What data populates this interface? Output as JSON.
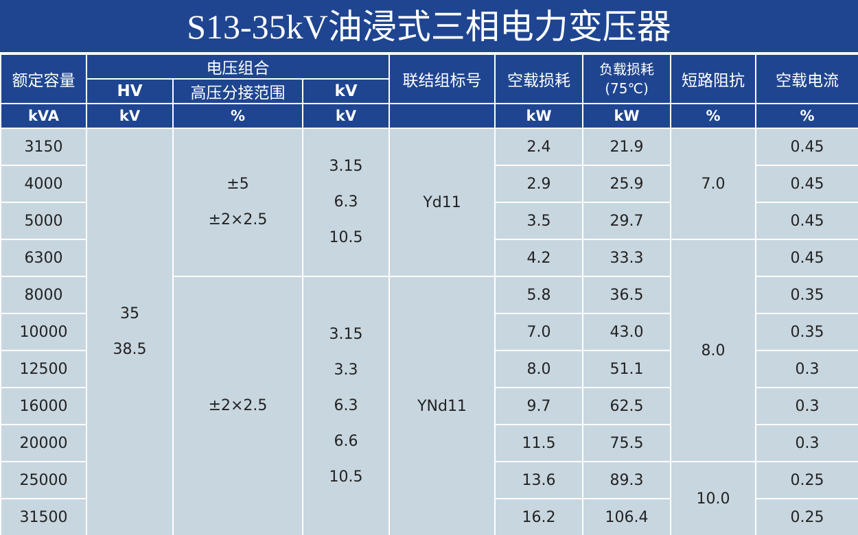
{
  "title": "S13-35kV油浸式三相电力变压器",
  "header": {
    "capacity": "额定容量",
    "voltage_group": "电压组合",
    "hv": "HV",
    "tap_range": "高压分接范围",
    "lv": "kV",
    "vector_group": "联结组标号",
    "no_load_loss": "空载损耗",
    "load_loss": [
      "负载损耗",
      "(75℃)"
    ],
    "impedance": "短路阻抗",
    "no_load_current": "空载电流"
  },
  "units": [
    "kVA",
    "kV",
    "%",
    "kV",
    "kW",
    "kW",
    "%",
    "%"
  ],
  "capacity": [
    "3150",
    "4000",
    "5000",
    "6300",
    "8000",
    "10000",
    "12500",
    "16000",
    "20000",
    "25000",
    "31500"
  ],
  "hv": [
    "35",
    "38.5"
  ],
  "tap": [
    [
      "±5",
      "±2×2.5"
    ],
    [
      "±2×2.5"
    ]
  ],
  "lv": [
    [
      "3.15",
      "6.3",
      "10.5"
    ],
    [
      "3.15",
      "3.3",
      "6.3",
      "6.6",
      "10.5"
    ]
  ],
  "vector_group": [
    "Yd11",
    "YNd11"
  ],
  "no_load_loss": [
    "2.4",
    "2.9",
    "3.5",
    "4.2",
    "5.8",
    "7.0",
    "8.0",
    "9.7",
    "11.5",
    "13.6",
    "16.2"
  ],
  "load_loss": [
    "21.9",
    "25.9",
    "29.7",
    "33.3",
    "36.5",
    "43.0",
    "51.1",
    "62.5",
    "75.5",
    "89.3",
    "106.4"
  ],
  "impedance": [
    "7.0",
    "8.0",
    "10.0"
  ],
  "no_load_current": [
    "0.45",
    "0.45",
    "0.45",
    "0.45",
    "0.35",
    "0.35",
    "0.3",
    "0.3",
    "0.3",
    "0.25",
    "0.25"
  ]
}
